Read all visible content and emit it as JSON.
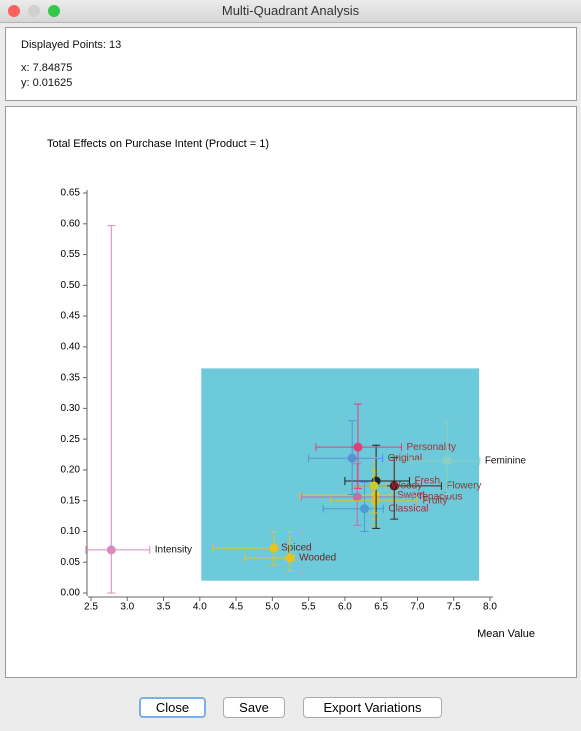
{
  "window": {
    "title": "Multi-Quadrant Analysis"
  },
  "info": {
    "displayed_points": "Displayed Points: 13",
    "x": "x: 7.84875",
    "y": "y: 0.01625"
  },
  "chart_data": {
    "type": "scatter",
    "title": "Total Effects on Purchase Intent (Product = 1)",
    "x_label": "Mean Value",
    "xlim": [
      2.5,
      8.0
    ],
    "ylim": [
      0,
      0.65
    ],
    "xticks": [
      {
        "value": 2.5,
        "label": "2.5"
      },
      {
        "value": 3,
        "label": "3.0"
      },
      {
        "value": 3.5,
        "label": "3.5"
      },
      {
        "value": 4,
        "label": "4.0"
      },
      {
        "value": 4.5,
        "label": "4.5"
      },
      {
        "value": 5,
        "label": "5.0"
      },
      {
        "value": 5.5,
        "label": "5.5"
      },
      {
        "value": 6,
        "label": "6.0"
      },
      {
        "value": 6.5,
        "label": "6.5"
      },
      {
        "value": 7,
        "label": "7.0"
      },
      {
        "value": 7.5,
        "label": "7.5"
      },
      {
        "value": 8,
        "label": "8.0"
      }
    ],
    "yticks": [
      {
        "value": 0,
        "label": "0.00"
      },
      {
        "value": 0.05,
        "label": "0.05"
      },
      {
        "value": 0.1,
        "label": "0.10"
      },
      {
        "value": 0.15,
        "label": "0.15"
      },
      {
        "value": 0.2,
        "label": "0.20"
      },
      {
        "value": 0.25,
        "label": "0.25"
      },
      {
        "value": 0.3,
        "label": "0.30"
      },
      {
        "value": 0.35,
        "label": "0.35"
      },
      {
        "value": 0.4,
        "label": "0.40"
      },
      {
        "value": 0.45,
        "label": "0.45"
      },
      {
        "value": 0.5,
        "label": "0.50"
      },
      {
        "value": 0.55,
        "label": "0.55"
      },
      {
        "value": 0.6,
        "label": "0.60"
      },
      {
        "value": 0.65,
        "label": "0.65"
      }
    ],
    "selection": {
      "color": "#6ccadb",
      "xlim": [
        4.02,
        7.85
      ],
      "ylim": [
        0.02,
        0.365
      ]
    },
    "series": [
      {
        "name": "Intensity",
        "color": "#d68bbf",
        "label_color": "#111111",
        "x": [
          2.78
        ],
        "values": [
          0.07
        ],
        "x_range": [
          2.43,
          3.31
        ],
        "y_range": [
          0.0,
          0.597
        ]
      },
      {
        "name": "Spiced",
        "color": "#e8c21e",
        "label_color": "#7a1a1a",
        "x": [
          5.02
        ],
        "values": [
          0.073
        ],
        "x_range": [
          4.18,
          5.05
        ],
        "y_range": [
          0.045,
          0.1
        ]
      },
      {
        "name": "Wooded",
        "color": "#e8c21e",
        "label_color": "#7a1a1a",
        "x": [
          5.24
        ],
        "values": [
          0.057
        ],
        "x_range": [
          4.62,
          5.3
        ],
        "y_range": [
          0.035,
          0.1
        ]
      },
      {
        "name": "Classical",
        "color": "#4d9ad6",
        "label_color": "#a03030",
        "x": [
          6.27
        ],
        "values": [
          0.137
        ],
        "x_range": [
          5.7,
          6.53
        ],
        "y_range": [
          0.1,
          0.18
        ]
      },
      {
        "name": "Sweet",
        "color": "#e0c828",
        "label_color": "#a03030",
        "x": [
          6.42
        ],
        "values": [
          0.159
        ],
        "x_range": [
          5.38,
          6.65
        ],
        "y_range": [
          0.12,
          0.2
        ]
      },
      {
        "name": "Tenacious",
        "color": "#cc6aa8",
        "label_color": "#a03030",
        "x": [
          6.17
        ],
        "values": [
          0.156
        ],
        "x_range": [
          5.4,
          6.93
        ],
        "y_range": [
          0.11,
          0.21
        ]
      },
      {
        "name": "Fruity",
        "color": "#d8c030",
        "label_color": "#a03030",
        "x": [
          6.42
        ],
        "values": [
          0.15
        ],
        "x_range": [
          5.8,
          7.0
        ],
        "y_range": [
          0.11,
          0.19
        ]
      },
      {
        "name": "Fresh",
        "color": "#222222",
        "label_color": "#a03030",
        "x": [
          6.43
        ],
        "values": [
          0.182
        ],
        "x_range": [
          6.0,
          6.89
        ],
        "y_range": [
          0.105,
          0.24
        ]
      },
      {
        "name": "Flowery",
        "color": "#5a1a1a",
        "label_color": "#a03030",
        "x": [
          6.68
        ],
        "values": [
          0.174
        ],
        "x_range": [
          6.1,
          7.33
        ],
        "y_range": [
          0.12,
          0.22
        ]
      },
      {
        "name": "Woody",
        "color": "#c9c93a",
        "label_color": "#a03030",
        "x": [
          6.4
        ],
        "values": [
          0.174
        ],
        "x_range": [
          6.1,
          6.57
        ],
        "y_range": [
          0.13,
          0.22
        ]
      },
      {
        "name": "Original",
        "color": "#5b8fd6",
        "label_color": "#a03030",
        "x": [
          6.1
        ],
        "values": [
          0.219
        ],
        "x_range": [
          5.5,
          6.52
        ],
        "y_range": [
          0.16,
          0.28
        ]
      },
      {
        "name": "Personality",
        "color": "#e0407a",
        "label_color": "#a03030",
        "x": [
          6.18
        ],
        "values": [
          0.237
        ],
        "x_range": [
          5.6,
          6.78
        ],
        "y_range": [
          0.17,
          0.307
        ]
      },
      {
        "name": "Feminine",
        "color": "#8ad0c0",
        "label_color": "#111111",
        "x": [
          7.41
        ],
        "values": [
          0.215
        ],
        "x_range": [
          6.9,
          7.86
        ],
        "y_range": [
          0.16,
          0.28
        ]
      }
    ]
  },
  "buttons": [
    "Close",
    "Save",
    "Export Variations"
  ]
}
